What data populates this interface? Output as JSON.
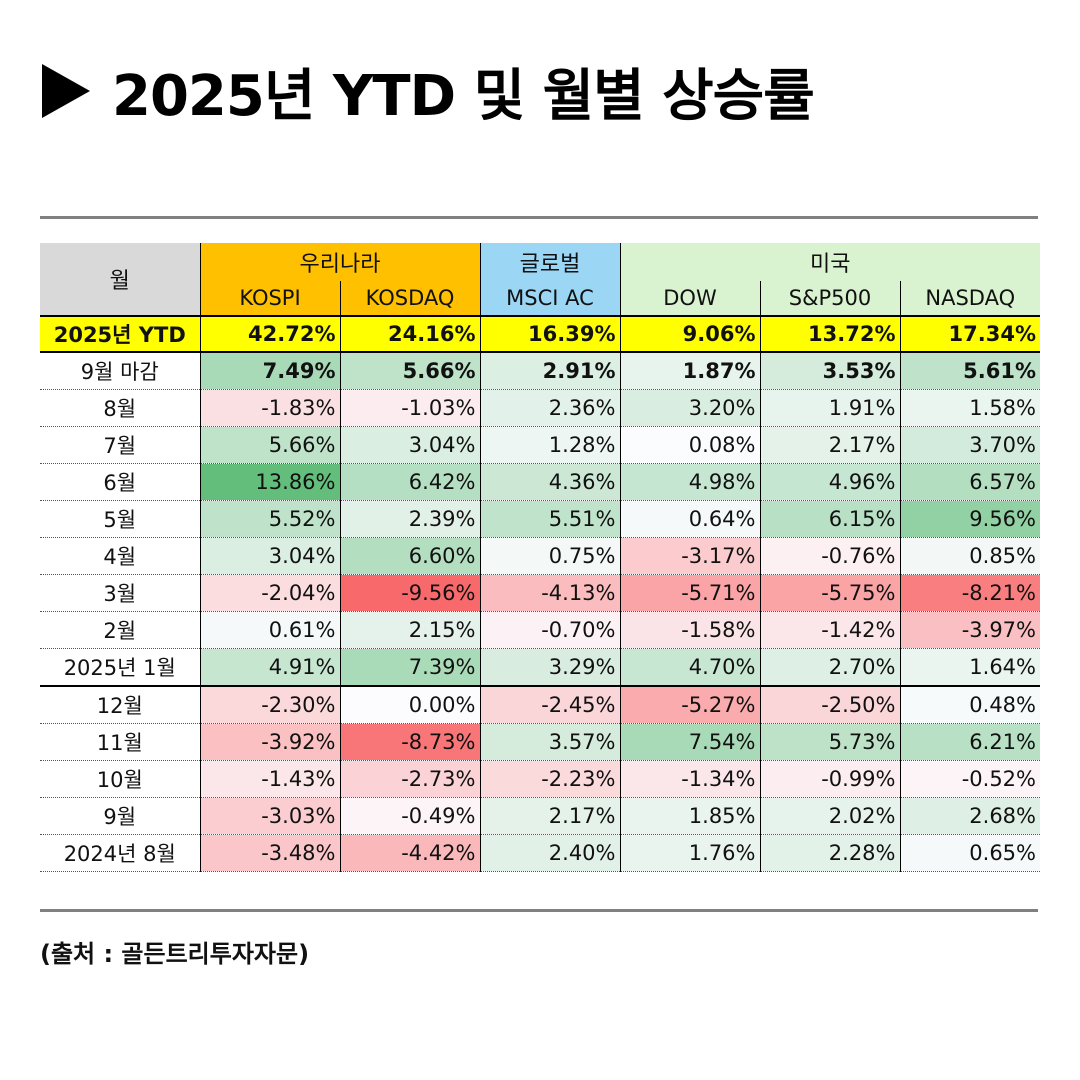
{
  "title": "2025년 YTD 및 월별 상승률",
  "source": "(출처 : 골든트리투자자문)",
  "colors": {
    "korea": "#ffc000",
    "global": "#9bd7f5",
    "us": "#d9f2d0",
    "ytd": "#ffff00"
  },
  "header": {
    "month_label": "월",
    "groups": [
      "우리나라",
      "글로벌",
      "미국"
    ],
    "columns": [
      "KOSPI",
      "KOSDAQ",
      "MSCI AC",
      "DOW",
      "S&P500",
      "NASDAQ"
    ]
  },
  "ytd": {
    "label": "2025년 YTD",
    "values": [
      "42.72%",
      "24.16%",
      "16.39%",
      "9.06%",
      "13.72%",
      "17.34%"
    ]
  },
  "rows": [
    {
      "label": "9월 마감",
      "values": [
        "7.49%",
        "5.66%",
        "2.91%",
        "1.87%",
        "3.53%",
        "5.61%"
      ]
    },
    {
      "label": "8월",
      "values": [
        "-1.83%",
        "-1.03%",
        "2.36%",
        "3.20%",
        "1.91%",
        "1.58%"
      ]
    },
    {
      "label": "7월",
      "values": [
        "5.66%",
        "3.04%",
        "1.28%",
        "0.08%",
        "2.17%",
        "3.70%"
      ]
    },
    {
      "label": "6월",
      "values": [
        "13.86%",
        "6.42%",
        "4.36%",
        "4.98%",
        "4.96%",
        "6.57%"
      ]
    },
    {
      "label": "5월",
      "values": [
        "5.52%",
        "2.39%",
        "5.51%",
        "0.64%",
        "6.15%",
        "9.56%"
      ]
    },
    {
      "label": "4월",
      "values": [
        "3.04%",
        "6.60%",
        "0.75%",
        "-3.17%",
        "-0.76%",
        "0.85%"
      ]
    },
    {
      "label": "3월",
      "values": [
        "-2.04%",
        "-9.56%",
        "-4.13%",
        "-5.71%",
        "-5.75%",
        "-8.21%"
      ]
    },
    {
      "label": "2월",
      "values": [
        "0.61%",
        "2.15%",
        "-0.70%",
        "-1.58%",
        "-1.42%",
        "-3.97%"
      ]
    },
    {
      "label": "2025년 1월",
      "values": [
        "4.91%",
        "7.39%",
        "3.29%",
        "4.70%",
        "2.70%",
        "1.64%"
      ]
    },
    {
      "label": "12월",
      "values": [
        "-2.30%",
        "0.00%",
        "-2.45%",
        "-5.27%",
        "-2.50%",
        "0.48%"
      ]
    },
    {
      "label": "11월",
      "values": [
        "-3.92%",
        "-8.73%",
        "3.57%",
        "7.54%",
        "5.73%",
        "6.21%"
      ]
    },
    {
      "label": "10월",
      "values": [
        "-1.43%",
        "-2.73%",
        "-2.23%",
        "-1.34%",
        "-0.99%",
        "-0.52%"
      ]
    },
    {
      "label": "9월",
      "values": [
        "-3.03%",
        "-0.49%",
        "2.17%",
        "1.85%",
        "2.02%",
        "2.68%"
      ]
    },
    {
      "label": "2024년 8월",
      "values": [
        "-3.48%",
        "-4.42%",
        "2.40%",
        "1.76%",
        "2.28%",
        "0.65%"
      ]
    }
  ]
}
